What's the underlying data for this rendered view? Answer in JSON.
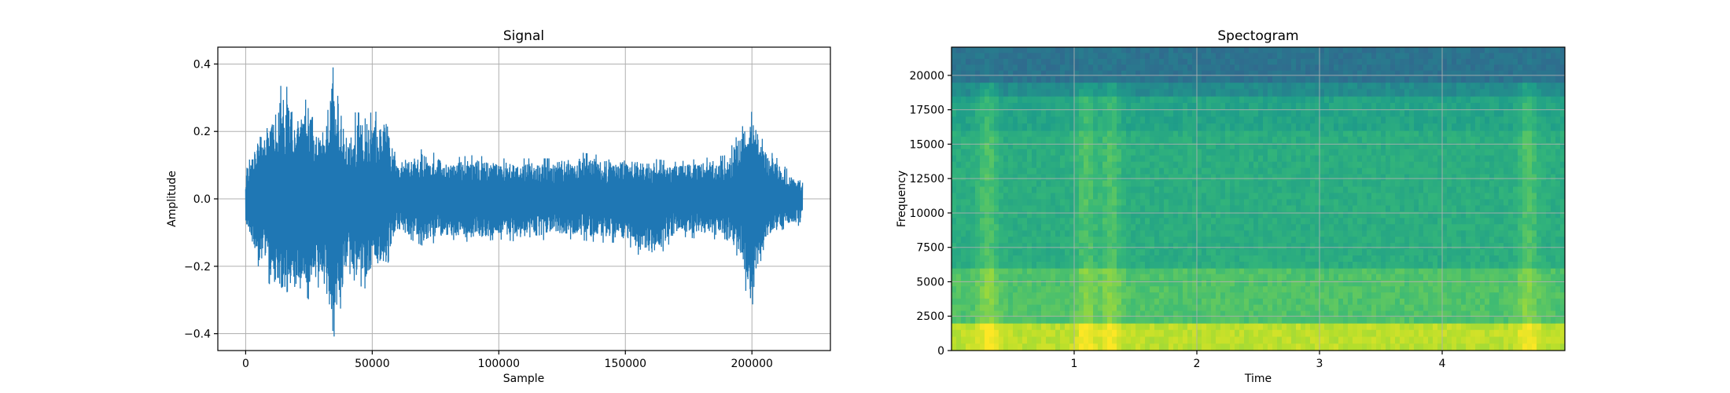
{
  "chart_data": [
    {
      "type": "line",
      "title": "Signal",
      "xlabel": "Sample",
      "ylabel": "Amplitude",
      "xlim": [
        -11000,
        231000
      ],
      "ylim": [
        -0.45,
        0.45
      ],
      "xticks": [
        0,
        50000,
        100000,
        150000,
        200000
      ],
      "xtick_labels": [
        "0",
        "50000",
        "100000",
        "150000",
        "200000"
      ],
      "yticks": [
        -0.4,
        -0.2,
        0.0,
        0.2,
        0.4
      ],
      "ytick_labels": [
        "−0.4",
        "−0.2",
        "0.0",
        "0.2",
        "0.4"
      ],
      "grid": true,
      "line_color": "#1f77b4",
      "series": [
        {
          "x": [
            0,
            5000,
            10000,
            15000,
            20000,
            25000,
            30000,
            35000,
            40000,
            45000,
            50000,
            55000,
            60000,
            70000,
            80000,
            90000,
            100000,
            110000,
            120000,
            130000,
            140000,
            150000,
            160000,
            170000,
            180000,
            190000,
            195000,
            200000,
            205000,
            210000,
            215000,
            220000
          ],
          "upper": [
            0.08,
            0.2,
            0.25,
            0.36,
            0.25,
            0.31,
            0.2,
            0.41,
            0.17,
            0.3,
            0.25,
            0.28,
            0.1,
            0.15,
            0.12,
            0.13,
            0.12,
            0.12,
            0.12,
            0.14,
            0.13,
            0.13,
            0.12,
            0.11,
            0.12,
            0.13,
            0.2,
            0.26,
            0.16,
            0.12,
            0.08,
            0.06
          ],
          "lower": [
            -0.09,
            -0.2,
            -0.26,
            -0.34,
            -0.25,
            -0.3,
            -0.25,
            -0.41,
            -0.24,
            -0.3,
            -0.22,
            -0.22,
            -0.1,
            -0.14,
            -0.12,
            -0.13,
            -0.12,
            -0.13,
            -0.12,
            -0.12,
            -0.13,
            -0.13,
            -0.2,
            -0.11,
            -0.12,
            -0.12,
            -0.18,
            -0.36,
            -0.15,
            -0.1,
            -0.08,
            -0.08
          ]
        }
      ]
    },
    {
      "type": "heatmap",
      "title": "Spectogram",
      "xlabel": "Time",
      "ylabel": "Frequency",
      "xlim": [
        0.0,
        5.0
      ],
      "ylim": [
        0,
        22050
      ],
      "xticks": [
        1,
        2,
        3,
        4
      ],
      "xtick_labels": [
        "1",
        "2",
        "3",
        "4"
      ],
      "yticks": [
        0,
        2500,
        5000,
        7500,
        10000,
        12500,
        15000,
        17500,
        20000
      ],
      "ytick_labels": [
        "0",
        "2500",
        "5000",
        "7500",
        "10000",
        "12500",
        "15000",
        "17500",
        "20000"
      ],
      "grid": true,
      "colormap": "viridis",
      "frequency_bands": [
        {
          "from": 0,
          "to": 2000,
          "level": 0.9
        },
        {
          "from": 2000,
          "to": 6000,
          "level": 0.72
        },
        {
          "from": 6000,
          "to": 16000,
          "level": 0.62
        },
        {
          "from": 16000,
          "to": 18500,
          "level": 0.58
        },
        {
          "from": 18500,
          "to": 19500,
          "level": 0.48
        },
        {
          "from": 19500,
          "to": 22050,
          "level": 0.38
        }
      ],
      "bright_times": [
        0.3,
        1.1,
        1.3,
        4.7
      ]
    }
  ]
}
